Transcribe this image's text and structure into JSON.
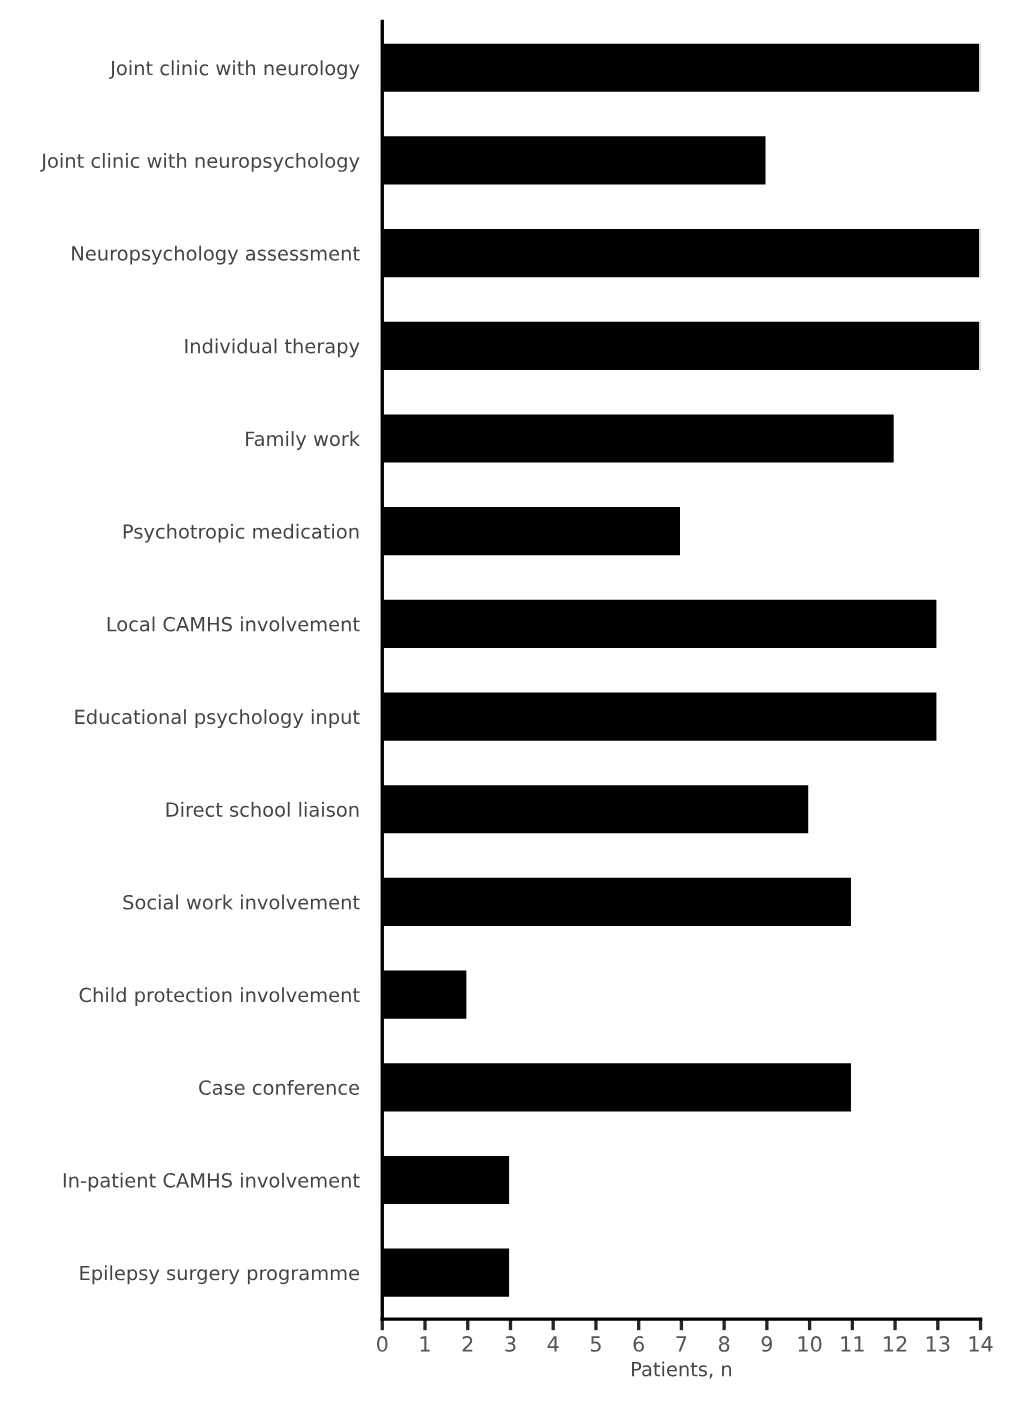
{
  "chart_data": {
    "type": "bar",
    "orientation": "horizontal",
    "xlabel": "Patients, n",
    "categories": [
      "Joint clinic with neurology",
      "Joint clinic with neuropsychology",
      "Neuropsychology assessment",
      "Individual therapy",
      "Family work",
      "Psychotropic medication",
      "Local CAMHS involvement",
      "Educational psychology input",
      "Direct school liaison",
      "Social work involvement",
      "Child protection involvement",
      "Case conference",
      "In-patient CAMHS involvement",
      "Epilepsy surgery programme"
    ],
    "values": [
      14,
      9,
      14,
      14,
      12,
      7,
      13,
      13,
      10,
      11,
      2,
      11,
      3,
      3
    ],
    "color": "#000000",
    "xlim": [
      0,
      14
    ],
    "xticks": [
      0,
      1,
      2,
      3,
      4,
      5,
      6,
      7,
      8,
      9,
      10,
      11,
      12,
      13,
      14
    ],
    "grid": false,
    "legend": false
  }
}
